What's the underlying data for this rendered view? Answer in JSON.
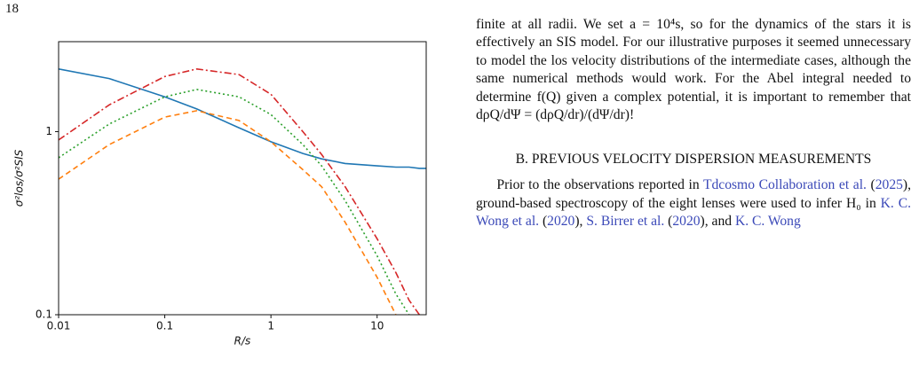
{
  "page_number": "18",
  "chart_data": {
    "type": "line",
    "log_x": true,
    "log_y": true,
    "xlabel": "R/s",
    "ylabel": "σ²los/σ²SIS",
    "x": [
      0.01,
      0.03,
      0.1,
      0.2,
      0.5,
      1,
      2,
      3,
      5,
      10,
      15,
      20,
      25,
      29
    ],
    "series": [
      {
        "color": "#1f77b4",
        "dash": "none",
        "values": [
          2.2,
          1.95,
          1.55,
          1.33,
          1.05,
          0.88,
          0.76,
          0.71,
          0.67,
          0.65,
          0.64,
          0.64,
          0.63,
          0.63
        ]
      },
      {
        "color": "#d62728",
        "dash": "8 3 2 3",
        "values": [
          0.9,
          1.4,
          2.0,
          2.2,
          2.05,
          1.6,
          1.0,
          0.75,
          0.5,
          0.26,
          0.17,
          0.12,
          0.1,
          null
        ]
      },
      {
        "color": "#2ca02c",
        "dash": "2 3",
        "values": [
          0.72,
          1.1,
          1.55,
          1.7,
          1.55,
          1.24,
          0.85,
          0.65,
          0.42,
          0.21,
          0.13,
          0.1,
          null,
          null
        ]
      },
      {
        "color": "#ff7f0e",
        "dash": "6 4",
        "values": [
          0.55,
          0.85,
          1.2,
          1.3,
          1.15,
          0.88,
          0.62,
          0.5,
          0.32,
          0.16,
          0.1,
          null,
          null,
          null
        ]
      }
    ],
    "xlim": [
      0.01,
      29
    ],
    "ylim": [
      0.1,
      3.1
    ],
    "xticks": [
      0.01,
      0.1,
      1,
      10
    ],
    "yticks": [
      0.1,
      1
    ]
  },
  "body": {
    "paragraph_1": "finite at all radii. We set a = 10⁴s, so for the dynamics of the stars it is effectively an SIS model. For our illustrative purposes it seemed unnecessary to model the los velocity distributions of the intermediate cases, although the same numerical methods would work. For the Abel integral needed to determine f(Q) given a complex potential, it is important to remember that dρQ/dΨ = (dρQ/dr)/(dΨ/dr)!",
    "section_heading": "B. PREVIOUS VELOCITY DISPERSION MEASUREMENTS",
    "paragraph_2": [
      {
        "text": "Prior to the observations reported in ",
        "link": false
      },
      {
        "text": "Tdcosmo Collaboration et al.",
        "link": true
      },
      {
        "text": " (",
        "link": false
      },
      {
        "text": "2025",
        "link": true
      },
      {
        "text": "), ground-based spectroscopy of the eight lenses were used to infer H₀ in ",
        "link": false
      },
      {
        "text": "K. C. Wong et al.",
        "link": true
      },
      {
        "text": " (",
        "link": false
      },
      {
        "text": "2020",
        "link": true
      },
      {
        "text": "), ",
        "link": false
      },
      {
        "text": "S. Birrer et al.",
        "link": true
      },
      {
        "text": " (",
        "link": false
      },
      {
        "text": "2020",
        "link": true
      },
      {
        "text": "), and ",
        "link": false
      },
      {
        "text": "K. C. Wong",
        "link": true
      }
    ]
  }
}
